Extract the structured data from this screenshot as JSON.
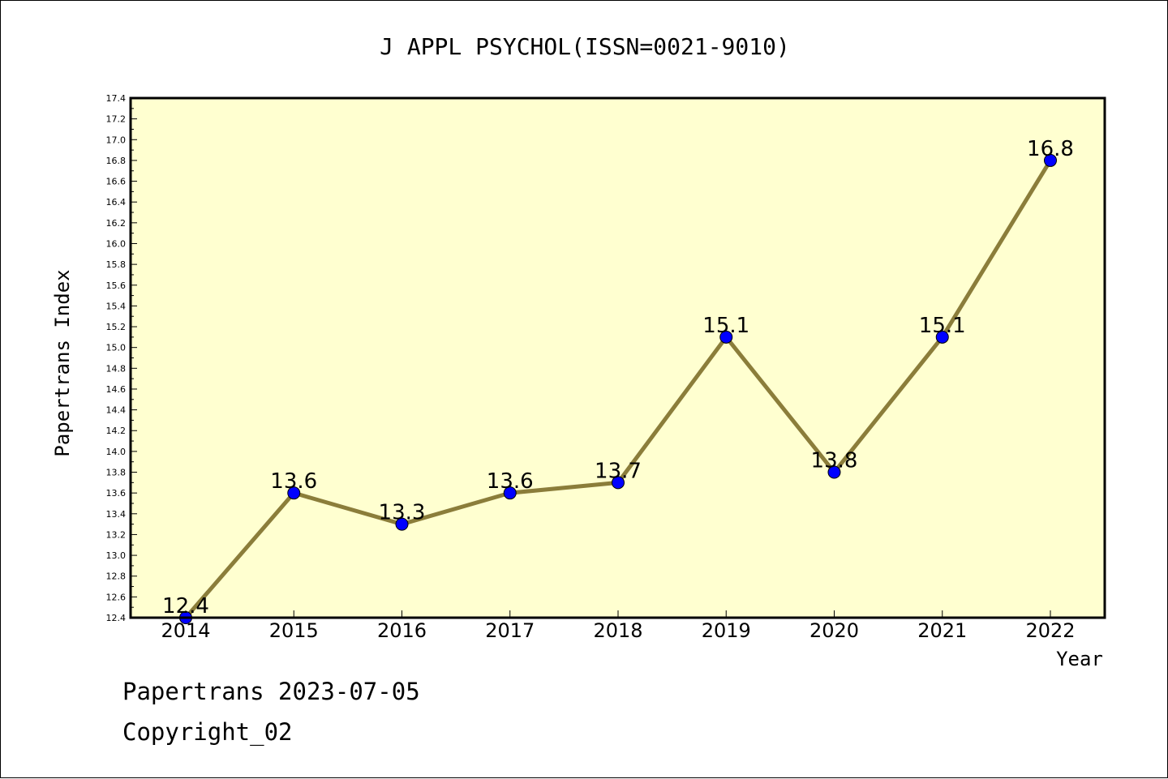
{
  "chart_data": {
    "type": "line",
    "title": "J APPL PSYCHOL(ISSN=0021-9010)",
    "xlabel": "Year",
    "ylabel": "Papertrans Index",
    "categories": [
      "2014",
      "2015",
      "2016",
      "2017",
      "2018",
      "2019",
      "2020",
      "2021",
      "2022"
    ],
    "series": [
      {
        "values": [
          12.4,
          13.6,
          13.3,
          13.6,
          13.7,
          15.1,
          13.8,
          15.1,
          16.8
        ]
      }
    ],
    "data_labels": [
      "12.4",
      "13.6",
      "13.3",
      "13.6",
      "13.7",
      "15.1",
      "13.8",
      "15.1",
      "16.8"
    ],
    "ylim": [
      12.4,
      17.4
    ],
    "ytick_step": 0.2,
    "legend": "none",
    "grid": false,
    "colors": {
      "plot_background": "#ffffd0",
      "line": "#8b7d3a",
      "marker": "#0000ff"
    }
  },
  "footer": {
    "line1": "Papertrans 2023-07-05",
    "line2": "Copyright_02"
  }
}
